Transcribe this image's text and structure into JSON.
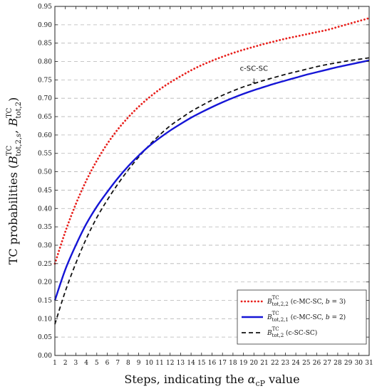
{
  "chart_data": {
    "type": "line",
    "xlabel": {
      "prefix": "Steps, indicating the ",
      "symbol": "α",
      "sub": "cP",
      "suffix": " value"
    },
    "ylabel": {
      "prefix": "TC probabilities (",
      "s1": {
        "base": "B",
        "sup": "TC",
        "sub": "tot,2,s"
      },
      "sep": ", ",
      "s2": {
        "base": "B",
        "sup": "TC",
        "sub": "tot,2"
      },
      "suffix": ")"
    },
    "xlim": [
      1,
      31
    ],
    "ylim": [
      0,
      0.95
    ],
    "x_ticks": [
      1,
      2,
      3,
      4,
      5,
      6,
      7,
      8,
      9,
      10,
      11,
      12,
      13,
      14,
      15,
      16,
      17,
      18,
      19,
      20,
      21,
      22,
      23,
      24,
      25,
      26,
      27,
      28,
      29,
      30,
      31
    ],
    "y_ticks": [
      "0.00",
      "0.05",
      "0.10",
      "0.15",
      "0.20",
      "0.25",
      "0.30",
      "0.35",
      "0.40",
      "0.45",
      "0.50",
      "0.55",
      "0.60",
      "0.65",
      "0.70",
      "0.75",
      "0.80",
      "0.85",
      "0.90",
      "0.95"
    ],
    "grid": "horizontal dashed",
    "legend_position": "bottom-right",
    "series": [
      {
        "name": {
          "base": "B",
          "sup": "TC",
          "sub": "tot,2,2",
          "note": " (c-MC-SC, ",
          "var": "b",
          "eq": " = 3)"
        },
        "color": "#e8201c",
        "style": "dotted",
        "x": [
          1,
          2,
          3,
          4,
          5,
          6,
          7,
          8,
          9,
          10,
          11,
          12,
          13,
          14,
          15,
          16,
          17,
          18,
          19,
          20,
          21,
          22,
          23,
          24,
          25,
          26,
          27,
          28,
          29,
          30,
          31
        ],
        "values": [
          0.25,
          0.337,
          0.412,
          0.476,
          0.53,
          0.576,
          0.615,
          0.648,
          0.677,
          0.702,
          0.724,
          0.743,
          0.76,
          0.776,
          0.79,
          0.802,
          0.813,
          0.823,
          0.832,
          0.84,
          0.848,
          0.855,
          0.862,
          0.868,
          0.874,
          0.88,
          0.886,
          0.894,
          0.902,
          0.91,
          0.918
        ]
      },
      {
        "name": {
          "base": "B",
          "sup": "TC",
          "sub": "tot,2,1",
          "note": " (c-MC-SC, ",
          "var": "b",
          "eq": " = 2)"
        },
        "color": "#1515d6",
        "style": "solid",
        "x": [
          1,
          2,
          3,
          4,
          5,
          6,
          7,
          8,
          9,
          10,
          11,
          12,
          13,
          14,
          15,
          16,
          17,
          18,
          19,
          20,
          21,
          22,
          23,
          24,
          25,
          26,
          27,
          28,
          29,
          30,
          31
        ],
        "values": [
          0.15,
          0.234,
          0.3,
          0.358,
          0.405,
          0.445,
          0.482,
          0.515,
          0.544,
          0.57,
          0.592,
          0.612,
          0.63,
          0.647,
          0.662,
          0.676,
          0.689,
          0.701,
          0.712,
          0.722,
          0.731,
          0.74,
          0.748,
          0.756,
          0.764,
          0.771,
          0.778,
          0.785,
          0.791,
          0.797,
          0.803
        ]
      },
      {
        "name": {
          "base": "B",
          "sup": "TC",
          "sub": "tot,2",
          "note": " (c-SC-SC)",
          "var": "",
          "eq": ""
        },
        "color": "#111111",
        "style": "dashed",
        "x": [
          1,
          2,
          3,
          4,
          5,
          6,
          7,
          8,
          9,
          10,
          11,
          12,
          13,
          14,
          15,
          16,
          17,
          18,
          19,
          20,
          21,
          22,
          23,
          24,
          25,
          26,
          27,
          28,
          29,
          30,
          31
        ],
        "values": [
          0.085,
          0.175,
          0.251,
          0.318,
          0.375,
          0.423,
          0.466,
          0.505,
          0.54,
          0.572,
          0.6,
          0.625,
          0.645,
          0.664,
          0.68,
          0.695,
          0.708,
          0.72,
          0.731,
          0.74,
          0.749,
          0.757,
          0.765,
          0.772,
          0.779,
          0.786,
          0.792,
          0.797,
          0.802,
          0.806,
          0.81
        ]
      }
    ],
    "annotations": [
      {
        "text": "c-SC-SC",
        "arrow": "↓",
        "x": 20,
        "y": 0.728
      }
    ]
  }
}
